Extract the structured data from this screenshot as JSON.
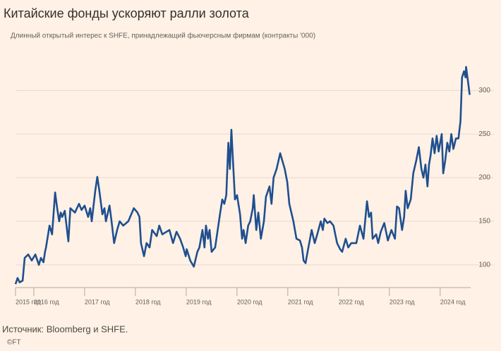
{
  "chart_data": {
    "type": "line",
    "title": "Китайские фонды ускоряют ралли золота",
    "subtitle": "Длинный открытый интерес к SHFE, принадлежащий фьючерсным фирмам (контракты '000)",
    "source": "Источник: Bloomberg и SHFE.",
    "credit": "©FT",
    "grid": true,
    "xlim": [
      2015.64,
      2024.6
    ],
    "xticks": [
      {
        "value": 2015.64,
        "label": "2015 год"
      },
      {
        "value": 2016,
        "label": "2016 год"
      },
      {
        "value": 2017,
        "label": "2017 год"
      },
      {
        "value": 2018,
        "label": "2018 год"
      },
      {
        "value": 2019,
        "label": "2019 год"
      },
      {
        "value": 2020,
        "label": "2020 год"
      },
      {
        "value": 2021,
        "label": "2021 год"
      },
      {
        "value": 2022,
        "label": "2022 год"
      },
      {
        "value": 2023,
        "label": "2023 год"
      },
      {
        "value": 2024,
        "label": "2024 год"
      }
    ],
    "ylim": [
      74,
      331
    ],
    "yticks": [
      100,
      150,
      200,
      250,
      300
    ],
    "x": [
      2015.64,
      2015.68,
      2015.72,
      2015.78,
      2015.82,
      2015.89,
      2015.96,
      2016.03,
      2016.1,
      2016.14,
      2016.19,
      2016.22,
      2016.24,
      2016.26,
      2016.31,
      2016.36,
      2016.42,
      2016.46,
      2016.5,
      2016.53,
      2016.56,
      2016.61,
      2016.68,
      2016.72,
      2016.81,
      2016.89,
      2016.94,
      2017.0,
      2017.07,
      2017.11,
      2017.14,
      2017.21,
      2017.25,
      2017.29,
      2017.35,
      2017.39,
      2017.42,
      2017.49,
      2017.53,
      2017.58,
      2017.64,
      2017.69,
      2017.76,
      2017.86,
      2017.97,
      2018.04,
      2018.08,
      2018.11,
      2018.17,
      2018.22,
      2018.28,
      2018.33,
      2018.42,
      2018.47,
      2018.53,
      2018.67,
      2018.74,
      2018.81,
      2018.88,
      2018.94,
      2018.99,
      2019.01,
      2019.08,
      2019.15,
      2019.22,
      2019.26,
      2019.32,
      2019.36,
      2019.39,
      2019.43,
      2019.46,
      2019.5,
      2019.57,
      2019.67,
      2019.71,
      2019.75,
      2019.79,
      2019.83,
      2019.86,
      2019.89,
      2019.96,
      2020.0,
      2020.06,
      2020.1,
      2020.13,
      2020.17,
      2020.22,
      2020.26,
      2020.31,
      2020.33,
      2020.38,
      2020.42,
      2020.47,
      2020.53,
      2020.57,
      2020.64,
      2020.68,
      2020.72,
      2020.78,
      2020.85,
      2020.89,
      2020.94,
      2020.99,
      2021.03,
      2021.11,
      2021.17,
      2021.24,
      2021.28,
      2021.31,
      2021.35,
      2021.39,
      2021.47,
      2021.53,
      2021.58,
      2021.65,
      2021.69,
      2021.72,
      2021.78,
      2021.83,
      2021.9,
      2021.97,
      2022.03,
      2022.07,
      2022.14,
      2022.19,
      2022.25,
      2022.35,
      2022.42,
      2022.49,
      2022.56,
      2022.6,
      2022.64,
      2022.67,
      2022.74,
      2022.78,
      2022.83,
      2022.9,
      2022.97,
      2023.04,
      2023.11,
      2023.15,
      2023.19,
      2023.25,
      2023.29,
      2023.32,
      2023.36,
      2023.42,
      2023.47,
      2023.53,
      2023.58,
      2023.63,
      2023.67,
      2023.71,
      2023.75,
      2023.78,
      2023.81,
      2023.85,
      2023.89,
      2023.93,
      2023.97,
      2024.03,
      2024.06,
      2024.1,
      2024.14,
      2024.18,
      2024.22,
      2024.26,
      2024.31,
      2024.36,
      2024.4,
      2024.43,
      2024.47,
      2024.5,
      2024.51,
      2024.56,
      2024.57,
      2024.58
    ],
    "series": [
      {
        "color": "#1f4f8f",
        "values": [
          78,
          85,
          80,
          82,
          108,
          112,
          105,
          112,
          100,
          108,
          103,
          115,
          120,
          127,
          145,
          135,
          183,
          165,
          150,
          160,
          155,
          162,
          127,
          165,
          160,
          170,
          163,
          168,
          155,
          165,
          150,
          185,
          201,
          185,
          158,
          165,
          150,
          168,
          150,
          125,
          140,
          150,
          145,
          150,
          165,
          160,
          155,
          125,
          110,
          125,
          120,
          140,
          133,
          145,
          135,
          140,
          125,
          138,
          130,
          120,
          110,
          118,
          105,
          98,
          115,
          120,
          140,
          120,
          145,
          130,
          140,
          115,
          120,
          160,
          175,
          170,
          180,
          240,
          210,
          255,
          175,
          180,
          158,
          130,
          140,
          125,
          145,
          150,
          165,
          180,
          140,
          160,
          130,
          150,
          178,
          190,
          170,
          200,
          210,
          228,
          220,
          210,
          195,
          170,
          150,
          130,
          128,
          120,
          105,
          102,
          115,
          140,
          125,
          135,
          150,
          140,
          153,
          148,
          150,
          145,
          125,
          118,
          115,
          130,
          120,
          125,
          125,
          145,
          130,
          173,
          155,
          160,
          130,
          135,
          125,
          138,
          148,
          128,
          140,
          130,
          167,
          165,
          140,
          155,
          185,
          165,
          175,
          205,
          220,
          235,
          210,
          200,
          215,
          190,
          215,
          225,
          245,
          228,
          248,
          230,
          250,
          205,
          220,
          240,
          230,
          250,
          233,
          245,
          245,
          265,
          315,
          322,
          315,
          327,
          305,
          300,
          295
        ]
      }
    ]
  }
}
